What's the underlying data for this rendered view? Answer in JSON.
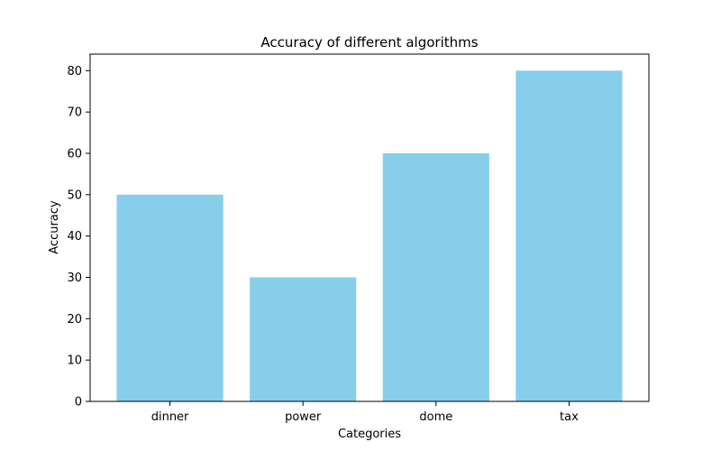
{
  "chart_data": {
    "type": "bar",
    "title": "Accuracy of different algorithms",
    "xlabel": "Categories",
    "ylabel": "Accuracy",
    "categories": [
      "dinner",
      "power",
      "dome",
      "tax"
    ],
    "values": [
      50,
      30,
      60,
      80
    ],
    "ylim": [
      0,
      84
    ],
    "yticks": [
      0,
      10,
      20,
      30,
      40,
      50,
      60,
      70,
      80
    ],
    "grid": false,
    "bar_color": "#87CEEB",
    "axis_color": "#000000"
  }
}
